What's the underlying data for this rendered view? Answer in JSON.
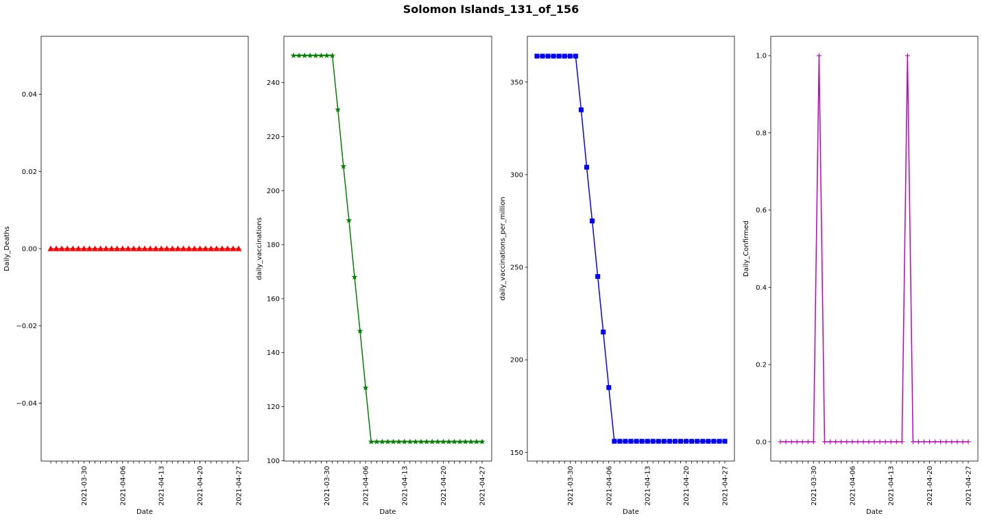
{
  "figure": {
    "title": "Solomon Islands_131_of_156"
  },
  "chart_data": [
    {
      "type": "line",
      "xlabel": "Date",
      "ylabel": "Daily_Deaths",
      "x": [
        "2021-03-24",
        "2021-03-25",
        "2021-03-26",
        "2021-03-27",
        "2021-03-28",
        "2021-03-29",
        "2021-03-30",
        "2021-03-31",
        "2021-04-01",
        "2021-04-02",
        "2021-04-03",
        "2021-04-04",
        "2021-04-05",
        "2021-04-06",
        "2021-04-07",
        "2021-04-08",
        "2021-04-09",
        "2021-04-10",
        "2021-04-11",
        "2021-04-12",
        "2021-04-13",
        "2021-04-14",
        "2021-04-15",
        "2021-04-16",
        "2021-04-17",
        "2021-04-18",
        "2021-04-19",
        "2021-04-20",
        "2021-04-21",
        "2021-04-22",
        "2021-04-23",
        "2021-04-24",
        "2021-04-25",
        "2021-04-26",
        "2021-04-27"
      ],
      "xticklabels": [
        "2021-03-30",
        "2021-04-06",
        "2021-04-13",
        "2021-04-20",
        "2021-04-27"
      ],
      "series": [
        {
          "color": "#ff0000",
          "marker": "triangle",
          "values": [
            0,
            0,
            0,
            0,
            0,
            0,
            0,
            0,
            0,
            0,
            0,
            0,
            0,
            0,
            0,
            0,
            0,
            0,
            0,
            0,
            0,
            0,
            0,
            0,
            0,
            0,
            0,
            0,
            0,
            0,
            0,
            0,
            0,
            0,
            0
          ]
        }
      ],
      "ylim": [
        -0.055,
        0.055
      ],
      "yticks": [
        -0.04,
        -0.02,
        0.0,
        0.02,
        0.04
      ],
      "yticklabels": [
        "−0.04",
        "−0.02",
        "0.00",
        "0.02",
        "0.04"
      ]
    },
    {
      "type": "line",
      "xlabel": "Date",
      "ylabel": "daily_vaccinations",
      "x": [
        "2021-03-24",
        "2021-03-25",
        "2021-03-26",
        "2021-03-27",
        "2021-03-28",
        "2021-03-29",
        "2021-03-30",
        "2021-03-31",
        "2021-04-01",
        "2021-04-02",
        "2021-04-03",
        "2021-04-04",
        "2021-04-05",
        "2021-04-06",
        "2021-04-07",
        "2021-04-08",
        "2021-04-09",
        "2021-04-10",
        "2021-04-11",
        "2021-04-12",
        "2021-04-13",
        "2021-04-14",
        "2021-04-15",
        "2021-04-16",
        "2021-04-17",
        "2021-04-18",
        "2021-04-19",
        "2021-04-20",
        "2021-04-21",
        "2021-04-22",
        "2021-04-23",
        "2021-04-24",
        "2021-04-25",
        "2021-04-26",
        "2021-04-27"
      ],
      "xticklabels": [
        "2021-03-30",
        "2021-04-06",
        "2021-04-13",
        "2021-04-20",
        "2021-04-27"
      ],
      "series": [
        {
          "color": "#008000",
          "marker": "star",
          "values": [
            250,
            250,
            250,
            250,
            250,
            250,
            250,
            250,
            230,
            209,
            189,
            168,
            148,
            127,
            107,
            107,
            107,
            107,
            107,
            107,
            107,
            107,
            107,
            107,
            107,
            107,
            107,
            107,
            107,
            107,
            107,
            107,
            107,
            107,
            107
          ]
        }
      ],
      "ylim": [
        99.85,
        257.15
      ],
      "yticks": [
        100,
        120,
        140,
        160,
        180,
        200,
        220,
        240
      ],
      "yticklabels": [
        "100",
        "120",
        "140",
        "160",
        "180",
        "200",
        "220",
        "240"
      ]
    },
    {
      "type": "line",
      "xlabel": "Date",
      "ylabel": "daily_vaccinations_per_million",
      "x": [
        "2021-03-24",
        "2021-03-25",
        "2021-03-26",
        "2021-03-27",
        "2021-03-28",
        "2021-03-29",
        "2021-03-30",
        "2021-03-31",
        "2021-04-01",
        "2021-04-02",
        "2021-04-03",
        "2021-04-04",
        "2021-04-05",
        "2021-04-06",
        "2021-04-07",
        "2021-04-08",
        "2021-04-09",
        "2021-04-10",
        "2021-04-11",
        "2021-04-12",
        "2021-04-13",
        "2021-04-14",
        "2021-04-15",
        "2021-04-16",
        "2021-04-17",
        "2021-04-18",
        "2021-04-19",
        "2021-04-20",
        "2021-04-21",
        "2021-04-22",
        "2021-04-23",
        "2021-04-24",
        "2021-04-25",
        "2021-04-26",
        "2021-04-27"
      ],
      "xticklabels": [
        "2021-03-30",
        "2021-04-06",
        "2021-04-13",
        "2021-04-20",
        "2021-04-27"
      ],
      "series": [
        {
          "color": "#0000ff",
          "marker": "square",
          "values": [
            364,
            364,
            364,
            364,
            364,
            364,
            364,
            364,
            335,
            304,
            275,
            245,
            215,
            185,
            156,
            156,
            156,
            156,
            156,
            156,
            156,
            156,
            156,
            156,
            156,
            156,
            156,
            156,
            156,
            156,
            156,
            156,
            156,
            156,
            156
          ]
        }
      ],
      "ylim": [
        145.3,
        374.7
      ],
      "yticks": [
        150,
        200,
        250,
        300,
        350
      ],
      "yticklabels": [
        "150",
        "200",
        "250",
        "300",
        "350"
      ]
    },
    {
      "type": "line",
      "xlabel": "Date",
      "ylabel": "Daily_Confirmed",
      "x": [
        "2021-03-24",
        "2021-03-25",
        "2021-03-26",
        "2021-03-27",
        "2021-03-28",
        "2021-03-29",
        "2021-03-30",
        "2021-03-31",
        "2021-04-01",
        "2021-04-02",
        "2021-04-03",
        "2021-04-04",
        "2021-04-05",
        "2021-04-06",
        "2021-04-07",
        "2021-04-08",
        "2021-04-09",
        "2021-04-10",
        "2021-04-11",
        "2021-04-12",
        "2021-04-13",
        "2021-04-14",
        "2021-04-15",
        "2021-04-16",
        "2021-04-17",
        "2021-04-18",
        "2021-04-19",
        "2021-04-20",
        "2021-04-21",
        "2021-04-22",
        "2021-04-23",
        "2021-04-24",
        "2021-04-25",
        "2021-04-26",
        "2021-04-27"
      ],
      "xticklabels": [
        "2021-03-30",
        "2021-04-06",
        "2021-04-13",
        "2021-04-20",
        "2021-04-27"
      ],
      "series": [
        {
          "color": "#bf00bf",
          "marker": "plus",
          "values": [
            0,
            0,
            0,
            0,
            0,
            0,
            0,
            1,
            0,
            0,
            0,
            0,
            0,
            0,
            0,
            0,
            0,
            0,
            0,
            0,
            0,
            0,
            0,
            1,
            0,
            0,
            0,
            0,
            0,
            0,
            0,
            0,
            0,
            0,
            0
          ]
        }
      ],
      "ylim": [
        -0.05,
        1.05
      ],
      "yticks": [
        0.0,
        0.2,
        0.4,
        0.6,
        0.8,
        1.0
      ],
      "yticklabels": [
        "0.0",
        "0.2",
        "0.4",
        "0.6",
        "0.8",
        "1.0"
      ]
    }
  ]
}
